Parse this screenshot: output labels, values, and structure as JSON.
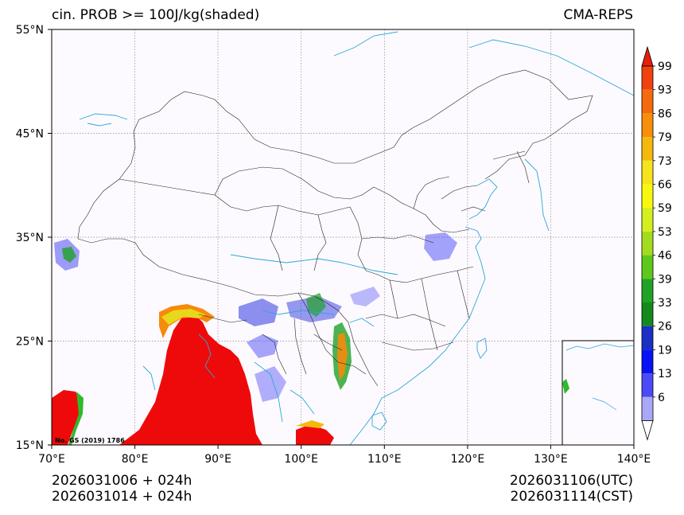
{
  "header": {
    "title_left": "cin. PROB >= 100J/kg(shaded)",
    "title_right": "CMA-REPS"
  },
  "map": {
    "lon_ticks": [
      "70°E",
      "80°E",
      "90°E",
      "100°E",
      "110°E",
      "120°E",
      "130°E",
      "140°E"
    ],
    "lat_ticks": [
      "55°N",
      "45°N",
      "35°N",
      "25°N",
      "15°N"
    ],
    "review_number": "No. GS (2019) 1786",
    "colors": {
      "background": "#fdfaff",
      "border": "#222222",
      "coast": "#2aa8d6",
      "grid": "#888888",
      "high_prob": "#ee0a0a"
    }
  },
  "colorbar": {
    "labels": [
      "99",
      "93",
      "86",
      "79",
      "73",
      "66",
      "59",
      "53",
      "46",
      "39",
      "33",
      "26",
      "19",
      "13",
      "6"
    ],
    "colors": [
      "#e81e0a",
      "#f0410f",
      "#f56a0c",
      "#f78f0a",
      "#f5b80d",
      "#f6e41c",
      "#f8f80f",
      "#d4ef1e",
      "#a3dc1d",
      "#5fc81d",
      "#1fa326",
      "#14891c",
      "#1a2fc4",
      "#0a12f4",
      "#4a4af6",
      "#a8a8f6"
    ]
  },
  "footer": {
    "left_line1": "2026031006  +  024h",
    "left_line2": "2026031014  +  024h",
    "right_line1": "2026031106(UTC)",
    "right_line2": "2026031114(CST)"
  }
}
